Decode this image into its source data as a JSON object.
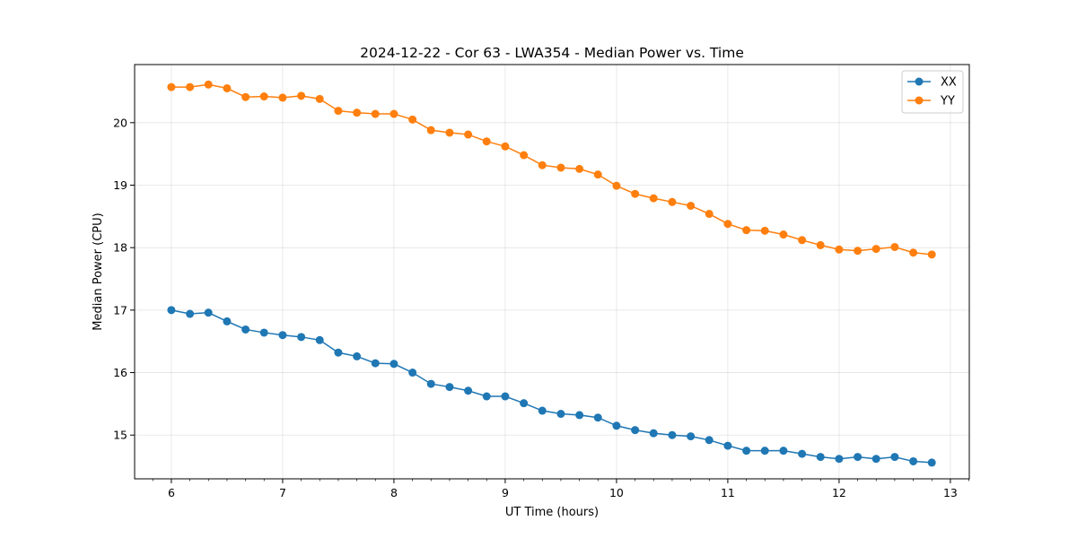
{
  "chart_data": {
    "type": "line",
    "title": "2024-12-22 - Cor 63 - LWA354 - Median Power vs. Time",
    "xlabel": "UT Time (hours)",
    "ylabel": "Median Power (CPU)",
    "xlim": [
      5.67,
      13.17
    ],
    "ylim": [
      14.3,
      20.93
    ],
    "xticks": [
      "6",
      "7",
      "8",
      "9",
      "10",
      "11",
      "12",
      "13"
    ],
    "yticks": [
      "15",
      "16",
      "17",
      "18",
      "19",
      "20"
    ],
    "grid": true,
    "legend_position": "top-right",
    "x": [
      6.0,
      6.167,
      6.333,
      6.5,
      6.667,
      6.833,
      7.0,
      7.167,
      7.333,
      7.5,
      7.667,
      7.833,
      8.0,
      8.167,
      8.333,
      8.5,
      8.667,
      8.833,
      9.0,
      9.167,
      9.333,
      9.5,
      9.667,
      9.833,
      10.0,
      10.167,
      10.333,
      10.5,
      10.667,
      10.833,
      11.0,
      11.167,
      11.333,
      11.5,
      11.667,
      11.833,
      12.0,
      12.167,
      12.333,
      12.5,
      12.667,
      12.833
    ],
    "series": [
      {
        "name": "XX",
        "color": "#1f77b4",
        "values": [
          17.0,
          16.94,
          16.96,
          16.82,
          16.69,
          16.64,
          16.6,
          16.57,
          16.52,
          16.32,
          16.26,
          16.15,
          16.14,
          16.0,
          15.82,
          15.77,
          15.71,
          15.62,
          15.62,
          15.51,
          15.39,
          15.34,
          15.32,
          15.28,
          15.15,
          15.08,
          15.03,
          15.0,
          14.98,
          14.92,
          14.83,
          14.75,
          14.75,
          14.75,
          14.7,
          14.65,
          14.62,
          14.65,
          14.62,
          14.65,
          14.58,
          14.56
        ]
      },
      {
        "name": "YY",
        "color": "#ff7f0e",
        "values": [
          20.57,
          20.57,
          20.61,
          20.55,
          20.41,
          20.42,
          20.4,
          20.43,
          20.38,
          20.19,
          20.16,
          20.14,
          20.14,
          20.05,
          19.88,
          19.84,
          19.81,
          19.7,
          19.62,
          19.48,
          19.32,
          19.28,
          19.26,
          19.17,
          18.99,
          18.86,
          18.79,
          18.73,
          18.67,
          18.54,
          18.38,
          18.28,
          18.27,
          18.21,
          18.12,
          18.04,
          17.97,
          17.95,
          17.98,
          18.01,
          17.92,
          17.89
        ]
      }
    ]
  }
}
